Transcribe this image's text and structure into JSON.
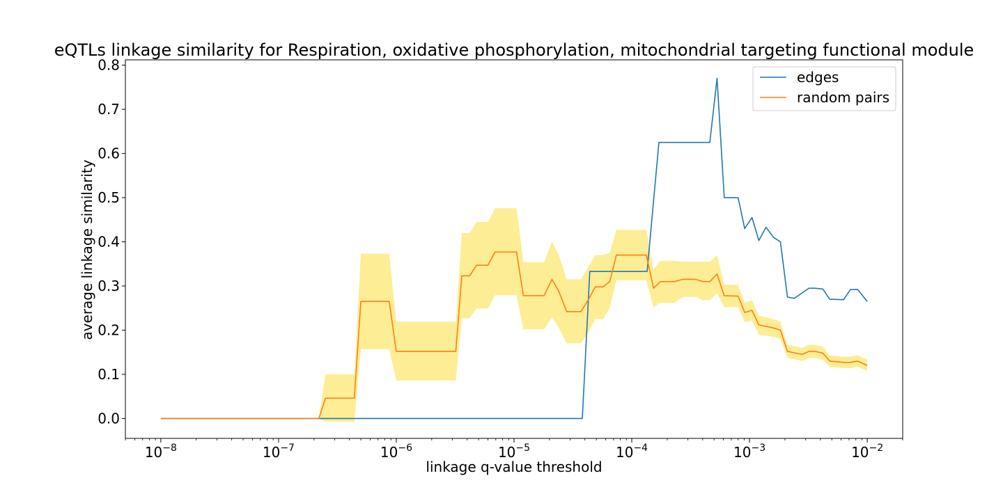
{
  "chart_data": {
    "type": "line",
    "title": "eQTLs linkage similarity for Respiration, oxidative phosphorylation, mitochondrial targeting functional module",
    "xlabel": "linkage q-value threshold",
    "ylabel": "average linkage similarity",
    "xscale": "log",
    "xlim": [
      5e-09,
      0.02
    ],
    "ylim": [
      -0.045,
      0.812
    ],
    "xticks": [
      {
        "value": 1e-08,
        "base": "10",
        "exp": "−8"
      },
      {
        "value": 1e-07,
        "base": "10",
        "exp": "−7"
      },
      {
        "value": 1e-06,
        "base": "10",
        "exp": "−6"
      },
      {
        "value": 1e-05,
        "base": "10",
        "exp": "−5"
      },
      {
        "value": 0.0001,
        "base": "10",
        "exp": "−4"
      },
      {
        "value": 0.001,
        "base": "10",
        "exp": "−3"
      },
      {
        "value": 0.01,
        "base": "10",
        "exp": "−2"
      }
    ],
    "yticks": [
      "0.0",
      "0.1",
      "0.2",
      "0.3",
      "0.4",
      "0.5",
      "0.6",
      "0.7",
      "0.8"
    ],
    "legend_position": "top-right",
    "grid": false,
    "series": [
      {
        "name": "edges",
        "color": "#1f77b4",
        "points": [
          [
            1e-08,
            0
          ],
          [
            3.8e-05,
            0
          ],
          [
            4.4e-05,
            0.333
          ],
          [
            0.000135,
            0.333
          ],
          [
            0.00017,
            0.625
          ],
          [
            0.00046,
            0.625
          ],
          [
            0.00053,
            0.77
          ],
          [
            0.00061,
            0.5
          ],
          [
            0.0008,
            0.5
          ],
          [
            0.00091,
            0.43
          ],
          [
            0.00105,
            0.455
          ],
          [
            0.0012,
            0.403
          ],
          [
            0.00138,
            0.433
          ],
          [
            0.0016,
            0.41
          ],
          [
            0.00183,
            0.4
          ],
          [
            0.0021,
            0.275
          ],
          [
            0.0024,
            0.272
          ],
          [
            0.0032,
            0.295
          ],
          [
            0.0036,
            0.295
          ],
          [
            0.0042,
            0.293
          ],
          [
            0.0048,
            0.27
          ],
          [
            0.0063,
            0.269
          ],
          [
            0.0072,
            0.292
          ],
          [
            0.0083,
            0.292
          ],
          [
            0.01,
            0.265
          ]
        ]
      },
      {
        "name": "random pairs",
        "color": "#ff7f0e",
        "band_color": "#fde97a",
        "points": [
          [
            1e-08,
            0,
            0,
            0
          ],
          [
            2.2e-07,
            0,
            0,
            0
          ],
          [
            2.5e-07,
            0.046,
            -0.007,
            0.1
          ],
          [
            4.4e-07,
            0.046,
            -0.007,
            0.1
          ],
          [
            5e-07,
            0.265,
            0.157,
            0.373
          ],
          [
            8.7e-07,
            0.265,
            0.157,
            0.373
          ],
          [
            1e-06,
            0.152,
            0.086,
            0.219
          ],
          [
            3.2e-06,
            0.152,
            0.086,
            0.219
          ],
          [
            3.6e-06,
            0.323,
            0.227,
            0.42
          ],
          [
            4.2e-06,
            0.323,
            0.227,
            0.42
          ],
          [
            4.8e-06,
            0.347,
            0.249,
            0.445
          ],
          [
            6e-06,
            0.347,
            0.249,
            0.445
          ],
          [
            6.9e-06,
            0.377,
            0.279,
            0.476
          ],
          [
            1.05e-05,
            0.377,
            0.279,
            0.476
          ],
          [
            1.2e-05,
            0.278,
            0.202,
            0.354
          ],
          [
            1.8e-05,
            0.278,
            0.202,
            0.354
          ],
          [
            2.1e-05,
            0.315,
            0.23,
            0.4
          ],
          [
            2.4e-05,
            0.288,
            0.205,
            0.37
          ],
          [
            2.8e-05,
            0.242,
            0.17,
            0.315
          ],
          [
            3.7e-05,
            0.242,
            0.17,
            0.315
          ],
          [
            4.3e-05,
            0.27,
            0.195,
            0.345
          ],
          [
            4.9e-05,
            0.298,
            0.225,
            0.37
          ],
          [
            5.7e-05,
            0.298,
            0.225,
            0.37
          ],
          [
            6.5e-05,
            0.31,
            0.25,
            0.375
          ],
          [
            7.4e-05,
            0.37,
            0.313,
            0.427
          ],
          [
            0.000133,
            0.37,
            0.313,
            0.427
          ],
          [
            0.000153,
            0.295,
            0.252,
            0.338
          ],
          [
            0.000175,
            0.31,
            0.262,
            0.357
          ],
          [
            0.00023,
            0.31,
            0.262,
            0.357
          ],
          [
            0.00027,
            0.315,
            0.275,
            0.355
          ],
          [
            0.00035,
            0.315,
            0.275,
            0.355
          ],
          [
            0.0004,
            0.31,
            0.268,
            0.355
          ],
          [
            0.00046,
            0.31,
            0.268,
            0.355
          ],
          [
            0.00053,
            0.327,
            0.283,
            0.37
          ],
          [
            0.00061,
            0.278,
            0.252,
            0.303
          ],
          [
            0.0008,
            0.277,
            0.252,
            0.303
          ],
          [
            0.00091,
            0.24,
            0.218,
            0.262
          ],
          [
            0.00105,
            0.245,
            0.222,
            0.268
          ],
          [
            0.0012,
            0.212,
            0.19,
            0.233
          ],
          [
            0.0016,
            0.205,
            0.185,
            0.225
          ],
          [
            0.00183,
            0.2,
            0.18,
            0.22
          ],
          [
            0.0021,
            0.152,
            0.137,
            0.167
          ],
          [
            0.0028,
            0.145,
            0.13,
            0.16
          ],
          [
            0.0032,
            0.152,
            0.137,
            0.167
          ],
          [
            0.0036,
            0.152,
            0.137,
            0.167
          ],
          [
            0.0042,
            0.148,
            0.133,
            0.163
          ],
          [
            0.0048,
            0.13,
            0.117,
            0.143
          ],
          [
            0.0063,
            0.127,
            0.114,
            0.14
          ],
          [
            0.0072,
            0.127,
            0.114,
            0.14
          ],
          [
            0.0083,
            0.13,
            0.117,
            0.143
          ],
          [
            0.01,
            0.12,
            0.108,
            0.133
          ]
        ]
      }
    ]
  }
}
